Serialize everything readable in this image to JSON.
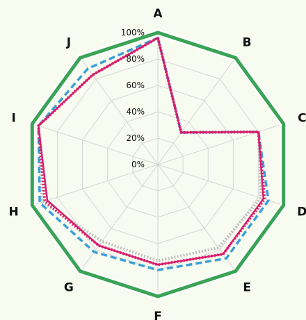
{
  "chart_data": {
    "type": "radar",
    "title": "",
    "categories": [
      "A",
      "B",
      "C",
      "D",
      "E",
      "F",
      "G",
      "H",
      "I",
      "J"
    ],
    "r_ticks": [
      "0%",
      "20%",
      "40%",
      "60%",
      "80%",
      "100%"
    ],
    "r_range": [
      0,
      100
    ],
    "grid": true,
    "legend": "none",
    "series": [
      {
        "values": [
          100,
          100,
          100,
          100,
          100,
          100,
          100,
          100,
          100,
          100
        ],
        "color": "#3aa356",
        "style": "solid-thick"
      },
      {
        "values": [
          96,
          30,
          80,
          88,
          88,
          80,
          82,
          94,
          95,
          90
        ],
        "color": "#3c9fd8",
        "style": "dashed"
      },
      {
        "values": [
          96,
          30,
          80,
          84,
          84,
          76,
          76,
          88,
          95,
          84
        ],
        "color": "#d81e6c",
        "style": "solid"
      },
      {
        "values": [
          96,
          30,
          80,
          82,
          78,
          73,
          72,
          92,
          95,
          84
        ],
        "color": "#bdbdbd",
        "style": "dotted"
      },
      {
        "values": [
          96,
          30,
          80,
          85,
          84,
          76,
          76,
          90,
          95,
          84
        ],
        "color": "#d81e6c",
        "style": "dotted"
      }
    ]
  }
}
